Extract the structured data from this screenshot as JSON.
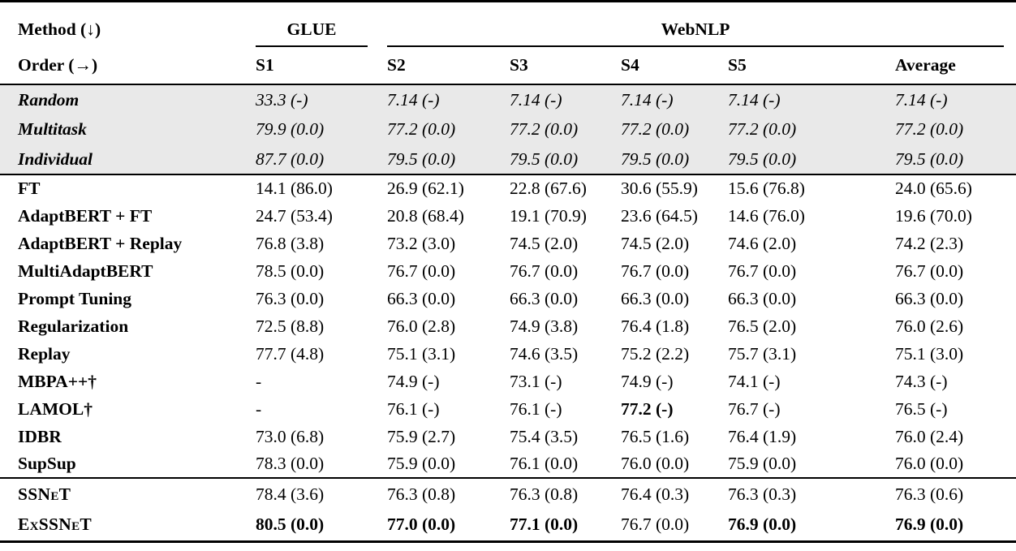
{
  "colors": {
    "band_background": "#e9e9e9",
    "rule_color": "#000000",
    "text_color": "#000000"
  },
  "table": {
    "header": {
      "method_label": "Method (↓)",
      "order_label": "Order (→)",
      "groups": [
        {
          "label": "GLUE"
        },
        {
          "label": "WebNLP"
        }
      ],
      "columns": [
        "S1",
        "S2",
        "S3",
        "S4",
        "S5",
        "Average"
      ]
    },
    "sections": {
      "baselines": {
        "rows": [
          {
            "method": "Random",
            "cells": [
              "33.3 (-)",
              "7.14 (-)",
              "7.14 (-)",
              "7.14 (-)",
              "7.14 (-)",
              "7.14 (-)"
            ]
          },
          {
            "method": "Multitask",
            "cells": [
              "79.9 (0.0)",
              "77.2 (0.0)",
              "77.2 (0.0)",
              "77.2 (0.0)",
              "77.2 (0.0)",
              "77.2 (0.0)"
            ]
          },
          {
            "method": "Individual",
            "cells": [
              "87.7 (0.0)",
              "79.5 (0.0)",
              "79.5 (0.0)",
              "79.5 (0.0)",
              "79.5 (0.0)",
              "79.5 (0.0)"
            ]
          }
        ]
      },
      "methods": {
        "rows": [
          {
            "method": "FT",
            "cells": [
              "14.1 (86.0)",
              "26.9 (62.1)",
              "22.8 (67.6)",
              "30.6 (55.9)",
              "15.6 (76.8)",
              "24.0 (65.6)"
            ]
          },
          {
            "method": "AdaptBERT + FT",
            "cells": [
              "24.7 (53.4)",
              "20.8 (68.4)",
              "19.1 (70.9)",
              "23.6 (64.5)",
              "14.6 (76.0)",
              "19.6 (70.0)"
            ]
          },
          {
            "method": "AdaptBERT + Replay",
            "cells": [
              "76.8 (3.8)",
              "73.2 (3.0)",
              "74.5 (2.0)",
              "74.5 (2.0)",
              "74.6 (2.0)",
              "74.2 (2.3)"
            ]
          },
          {
            "method": "MultiAdaptBERT",
            "cells": [
              "78.5 (0.0)",
              "76.7 (0.0)",
              "76.7 (0.0)",
              "76.7 (0.0)",
              "76.7 (0.0)",
              "76.7 (0.0)"
            ]
          },
          {
            "method": "Prompt Tuning",
            "cells": [
              "76.3 (0.0)",
              "66.3 (0.0)",
              "66.3 (0.0)",
              "66.3 (0.0)",
              "66.3 (0.0)",
              "66.3 (0.0)"
            ]
          },
          {
            "method": "Regularization",
            "cells": [
              "72.5 (8.8)",
              "76.0 (2.8)",
              "74.9 (3.8)",
              "76.4 (1.8)",
              "76.5 (2.0)",
              "76.0 (2.6)"
            ]
          },
          {
            "method": "Replay",
            "cells": [
              "77.7 (4.8)",
              "75.1 (3.1)",
              "74.6 (3.5)",
              "75.2 (2.2)",
              "75.7 (3.1)",
              "75.1 (3.0)"
            ]
          },
          {
            "method": "MBPA++†",
            "cells": [
              "-",
              "74.9 (-)",
              "73.1 (-)",
              "74.9 (-)",
              "74.1 (-)",
              "74.3 (-)"
            ]
          },
          {
            "method": "LAMOL†",
            "cells": [
              "-",
              "76.1 (-)",
              "76.1 (-)",
              {
                "t": "77.2 (-)",
                "b": true
              },
              "76.7 (-)",
              "76.5 (-)"
            ]
          },
          {
            "method": "IDBR",
            "cells": [
              "73.0 (6.8)",
              "75.9 (2.7)",
              "75.4 (3.5)",
              "76.5 (1.6)",
              "76.4 (1.9)",
              "76.0 (2.4)"
            ]
          },
          {
            "method": "SupSup",
            "cells": [
              "78.3 (0.0)",
              "75.9 (0.0)",
              "76.1 (0.0)",
              "76.0 (0.0)",
              "75.9 (0.0)",
              "76.0 (0.0)"
            ]
          }
        ]
      },
      "ours": {
        "rows": [
          {
            "method": "SSNeT",
            "smallcaps": true,
            "cells": [
              "78.4 (3.6)",
              "76.3 (0.8)",
              "76.3 (0.8)",
              "76.4 (0.3)",
              "76.3 (0.3)",
              "76.3 (0.6)"
            ]
          },
          {
            "method": "ExSSNeT",
            "smallcaps": true,
            "cells": [
              {
                "t": "80.5 (0.0)",
                "b": true
              },
              {
                "t": "77.0 (0.0)",
                "b": true
              },
              {
                "t": "77.1 (0.0)",
                "b": true
              },
              "76.7 (0.0)",
              {
                "t": "76.9 (0.0)",
                "b": true
              },
              {
                "t": "76.9 (0.0)",
                "b": true
              }
            ]
          }
        ]
      }
    }
  }
}
